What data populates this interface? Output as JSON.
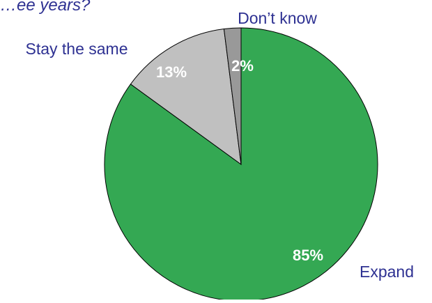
{
  "chart_data": {
    "type": "pie",
    "title_fragment": "…ee years?",
    "slices": [
      {
        "label": "Expand",
        "value": 85,
        "value_label": "85%",
        "color": "#34a853"
      },
      {
        "label": "Stay the same",
        "value": 13,
        "value_label": "13%",
        "color": "#c0c0c0"
      },
      {
        "label": "Don’t know",
        "value": 2,
        "value_label": "2%",
        "color": "#999999"
      }
    ],
    "start_angle_deg": 0,
    "direction": "clockwise",
    "label_color": "#2e3192",
    "value_label_color": "#ffffff",
    "outline_color": "#000000"
  }
}
